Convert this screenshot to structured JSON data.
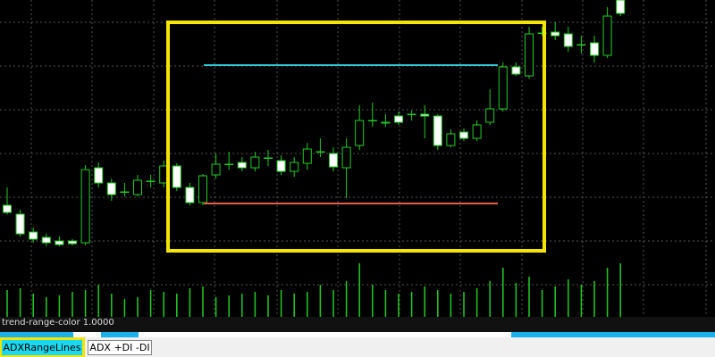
{
  "chart_data": {
    "type": "candlestick",
    "ohlc": [
      [
        170,
        190,
        160,
        162
      ],
      [
        160,
        165,
        135,
        138
      ],
      [
        140,
        145,
        128,
        132
      ],
      [
        134,
        138,
        124,
        128
      ],
      [
        130,
        135,
        124,
        126
      ],
      [
        130,
        132,
        125,
        127
      ],
      [
        128,
        215,
        125,
        210
      ],
      [
        212,
        218,
        190,
        195
      ],
      [
        195,
        200,
        175,
        182
      ],
      [
        185,
        195,
        180,
        185
      ],
      [
        182,
        204,
        180,
        198
      ],
      [
        197,
        204,
        190,
        197
      ],
      [
        195,
        220,
        190,
        214
      ],
      [
        214,
        217,
        186,
        190
      ],
      [
        190,
        195,
        170,
        173
      ],
      [
        173,
        205,
        170,
        203
      ],
      [
        204,
        228,
        200,
        216
      ],
      [
        216,
        230,
        210,
        216
      ],
      [
        218,
        224,
        208,
        212
      ],
      [
        212,
        230,
        208,
        224
      ],
      [
        223,
        232,
        214,
        223
      ],
      [
        220,
        226,
        204,
        208
      ],
      [
        208,
        224,
        202,
        218
      ],
      [
        217,
        240,
        210,
        233
      ],
      [
        230,
        245,
        224,
        230
      ],
      [
        228,
        235,
        208,
        213
      ],
      [
        212,
        245,
        178,
        235
      ],
      [
        237,
        282,
        232,
        265
      ],
      [
        265,
        285,
        258,
        265
      ],
      [
        263,
        272,
        258,
        262
      ],
      [
        270,
        275,
        260,
        263
      ],
      [
        272,
        276,
        265,
        272
      ],
      [
        272,
        282,
        245,
        270
      ],
      [
        270,
        272,
        232,
        237
      ],
      [
        237,
        255,
        235,
        250
      ],
      [
        252,
        256,
        242,
        245
      ],
      [
        245,
        265,
        242,
        260
      ],
      [
        263,
        300,
        260,
        278
      ],
      [
        278,
        330,
        275,
        325
      ],
      [
        325,
        330,
        315,
        317
      ],
      [
        315,
        370,
        312,
        362
      ],
      [
        363,
        370,
        360,
        363
      ],
      [
        364,
        375,
        355,
        360
      ],
      [
        362,
        370,
        342,
        348
      ],
      [
        350,
        360,
        340,
        350
      ],
      [
        352,
        360,
        330,
        338
      ],
      [
        338,
        392,
        335,
        382
      ],
      [
        400,
        400,
        382,
        385
      ]
    ],
    "volume": [
      30,
      32,
      26,
      22,
      24,
      28,
      30,
      36,
      26,
      20,
      22,
      30,
      28,
      26,
      32,
      34,
      22,
      24,
      26,
      28,
      24,
      30,
      26,
      28,
      36,
      30,
      40,
      60,
      36,
      30,
      26,
      28,
      34,
      30,
      26,
      28,
      32,
      40,
      55,
      38,
      45,
      30,
      34,
      42,
      36,
      40,
      55,
      60
    ],
    "ylim": [
      45,
      400
    ],
    "vlim": [
      0,
      70
    ],
    "levels": [
      {
        "value": 327,
        "color": "#33c8d8"
      },
      {
        "value": 172,
        "color": "#e0604a"
      }
    ],
    "colors": {
      "up_body": "#000000",
      "down_body": "#ffffff",
      "outline": "#22cc22",
      "volume": "#22cc22"
    }
  },
  "status_text": "trend-range-color 1.0000",
  "tabs": [
    "ADXRangeLines",
    "ADX +DI -DI"
  ]
}
